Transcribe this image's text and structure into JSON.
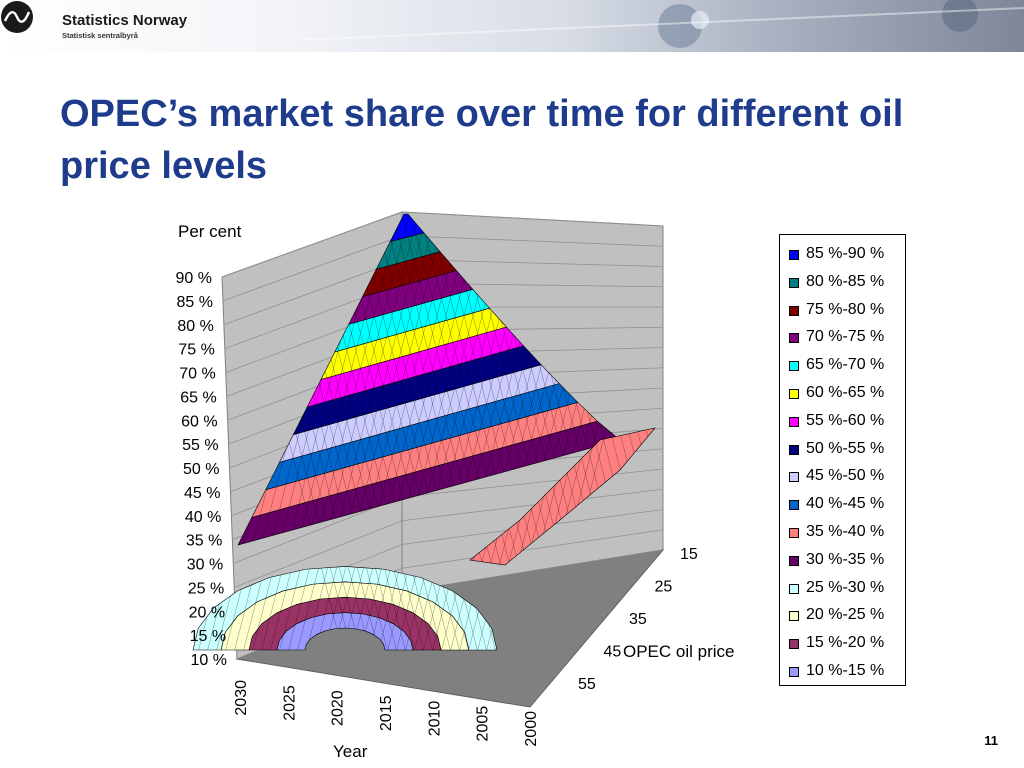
{
  "brand": {
    "name": "Statistics Norway",
    "subtitle": "Statistisk sentralbyrå"
  },
  "slide": {
    "title": "OPEC’s market share over time for different oil price levels",
    "page_number": "11"
  },
  "colors": {
    "title": "#1f3c8c",
    "wall": "#c0c0c0",
    "floor": "#808080"
  },
  "chart_data": {
    "type": "surface-3d",
    "ylabel": "Per cent",
    "xlabel": "Year",
    "zlabel": "OPEC oil price",
    "y_ticks": [
      "10 %",
      "15 %",
      "20 %",
      "25 %",
      "30 %",
      "35 %",
      "40 %",
      "45 %",
      "50 %",
      "55 %",
      "60 %",
      "65 %",
      "70 %",
      "75 %",
      "80 %",
      "85 %",
      "90 %"
    ],
    "x_ticks": [
      "2030",
      "2025",
      "2020",
      "2015",
      "2010",
      "2005",
      "2000"
    ],
    "z_ticks": [
      "15",
      "25",
      "35",
      "45",
      "55"
    ],
    "ylim": [
      10,
      90
    ],
    "legend_position": "right",
    "bands": [
      {
        "label": "85 %-90 %",
        "color": "#0000ff"
      },
      {
        "label": "80 %-85 %",
        "color": "#008080"
      },
      {
        "label": "75 %-80 %",
        "color": "#800000"
      },
      {
        "label": "70 %-75 %",
        "color": "#800080"
      },
      {
        "label": "65 %-70 %",
        "color": "#00ffff"
      },
      {
        "label": "60 %-65 %",
        "color": "#ffff00"
      },
      {
        "label": "55 %-60 %",
        "color": "#ff00ff"
      },
      {
        "label": "50 %-55 %",
        "color": "#000080"
      },
      {
        "label": "45 %-50 %",
        "color": "#ccccff"
      },
      {
        "label": "40 %-45 %",
        "color": "#0066cc"
      },
      {
        "label": "35 %-40 %",
        "color": "#ff8080"
      },
      {
        "label": "30 %-35 %",
        "color": "#660066"
      },
      {
        "label": "25 %-30 %",
        "color": "#ccffff"
      },
      {
        "label": "20 %-25 %",
        "color": "#ffffcc"
      },
      {
        "label": "15 %-20 %",
        "color": "#993366"
      },
      {
        "label": "10 %-15 %",
        "color": "#9999ff"
      }
    ]
  }
}
